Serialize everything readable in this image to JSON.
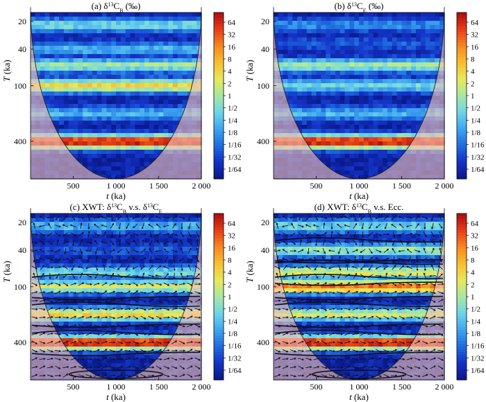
{
  "figure": {
    "panels": [
      {
        "id": "a",
        "title": "(a) δ¹³C_B (‰)",
        "title_parts": [
          "(a) δ",
          "13",
          "C",
          "B",
          " (‰)"
        ],
        "type": "wavelet_power",
        "arrows": false,
        "contours": false
      },
      {
        "id": "b",
        "title": "(b) δ¹³C_E (‰)",
        "title_parts": [
          "(b) δ",
          "13",
          "C",
          "E",
          " (‰)"
        ],
        "type": "wavelet_power",
        "arrows": false,
        "contours": false
      },
      {
        "id": "c",
        "title": "(c) XWT: δ¹³C_B v.s. δ¹³C_E",
        "title_parts": [
          "(c) XWT: δ",
          "13",
          "C",
          "B",
          " v.s. δ",
          "13",
          "C",
          "E"
        ],
        "type": "cross_wavelet",
        "arrows": true,
        "contours": true
      },
      {
        "id": "d",
        "title": "(d) XWT: δ¹³C_B v.s. Ecc.",
        "title_parts": [
          "(d) XWT: δ",
          "13",
          "C",
          "B",
          " v.s. Ecc.",
          "",
          "",
          ""
        ],
        "type": "cross_wavelet",
        "arrows": true,
        "contours": true
      }
    ]
  },
  "chart_data": [
    {
      "type": "heatmap",
      "panel": "a",
      "title": "(a) δ13CB (‰)",
      "xlabel_var": "t",
      "xlabel_unit": " (ka)",
      "ylabel_var": "T",
      "ylabel_unit": " (ka)",
      "x_ticks": [
        500,
        1000,
        1500,
        2000
      ],
      "x_tick_labels": [
        "500",
        "1 000",
        "1 500",
        "2 000"
      ],
      "xlim": [
        0,
        2000
      ],
      "y_ticks": [
        20,
        40,
        100,
        400
      ],
      "y_tick_labels": [
        "20",
        "40",
        "100",
        "400"
      ],
      "ylim_log2": [
        4,
        10
      ],
      "y_scale": "log2",
      "colorbar_labels": [
        "64",
        "32",
        "16",
        "8",
        "4",
        "2",
        "1",
        "1/2",
        "1/4",
        "1/8",
        "1/16",
        "1/32",
        "1/64"
      ],
      "bands": [
        {
          "period": 22,
          "power": 0.5
        },
        {
          "period": 40,
          "power": 0.25
        },
        {
          "period": 60,
          "power": 1
        },
        {
          "period": 100,
          "power": 4
        },
        {
          "period": 200,
          "power": 0.25
        },
        {
          "period": 405,
          "power": 64
        }
      ]
    },
    {
      "type": "heatmap",
      "panel": "b",
      "title": "(b) δ13CE (‰)",
      "xlabel_var": "t",
      "xlabel_unit": " (ka)",
      "ylabel_var": "T",
      "ylabel_unit": " (ka)",
      "x_ticks": [
        500,
        1000,
        1500,
        2000
      ],
      "x_tick_labels": [
        "500",
        "1 000",
        "1 500",
        "2 000"
      ],
      "xlim": [
        0,
        2000
      ],
      "y_ticks": [
        20,
        40,
        100,
        400
      ],
      "y_tick_labels": [
        "20",
        "40",
        "100",
        "400"
      ],
      "ylim_log2": [
        4,
        10
      ],
      "y_scale": "log2",
      "colorbar_labels": [
        "64",
        "32",
        "16",
        "8",
        "4",
        "2",
        "1",
        "1/2",
        "1/4",
        "1/8",
        "1/16",
        "1/32",
        "1/64"
      ],
      "bands": [
        {
          "period": 22,
          "power": 0.125
        },
        {
          "period": 35,
          "power": 0.0625
        },
        {
          "period": 60,
          "power": 1
        },
        {
          "period": 100,
          "power": 0.5
        },
        {
          "period": 200,
          "power": 0.25
        },
        {
          "period": 405,
          "power": 64
        }
      ]
    },
    {
      "type": "heatmap",
      "panel": "c",
      "title": "(c) XWT: δ13CB v.s. δ13CE",
      "xlabel_var": "t",
      "xlabel_unit": " (ka)",
      "ylabel_var": "T",
      "ylabel_unit": " (ka)",
      "x_ticks": [
        500,
        1000,
        1500,
        2000
      ],
      "x_tick_labels": [
        "500",
        "1 000",
        "1 500",
        "2 000"
      ],
      "xlim": [
        0,
        2000
      ],
      "y_ticks": [
        20,
        40,
        100,
        400
      ],
      "y_tick_labels": [
        "20",
        "40",
        "100",
        "400"
      ],
      "ylim_log2": [
        4,
        10
      ],
      "y_scale": "log2",
      "colorbar_labels": [
        "64",
        "32",
        "16",
        "8",
        "4",
        "2",
        "1",
        "1/2",
        "1/4",
        "1/8",
        "1/16",
        "1/32",
        "1/64"
      ],
      "bands": [
        {
          "period": 22,
          "power": 0.25
        },
        {
          "period": 40,
          "power": 0.0625
        },
        {
          "period": 70,
          "power": 0.5
        },
        {
          "period": 100,
          "power": 2
        },
        {
          "period": 200,
          "power": 4
        },
        {
          "period": 405,
          "power": 64
        }
      ]
    },
    {
      "type": "heatmap",
      "panel": "d",
      "title": "(d) XWT: δ13CB v.s. Ecc.",
      "xlabel_var": "t",
      "xlabel_unit": " (ka)",
      "ylabel_var": "T",
      "ylabel_unit": " (ka)",
      "x_ticks": [
        500,
        1000,
        1500,
        2000
      ],
      "x_tick_labels": [
        "500",
        "1 000",
        "1 500",
        "2 000"
      ],
      "xlim": [
        0,
        2000
      ],
      "y_ticks": [
        20,
        40,
        100,
        400
      ],
      "y_tick_labels": [
        "20",
        "40",
        "100",
        "400"
      ],
      "ylim_log2": [
        4,
        10
      ],
      "y_scale": "log2",
      "colorbar_labels": [
        "64",
        "32",
        "16",
        "8",
        "4",
        "2",
        "1",
        "1/2",
        "1/4",
        "1/8",
        "1/16",
        "1/32",
        "1/64"
      ],
      "bands": [
        {
          "period": 22,
          "power": 0.5
        },
        {
          "period": 40,
          "power": 1
        },
        {
          "period": 70,
          "power": 2
        },
        {
          "period": 100,
          "power": 16
        },
        {
          "period": 200,
          "power": 2
        },
        {
          "period": 405,
          "power": 64
        }
      ]
    }
  ],
  "colormap": [
    "#0a1a8c",
    "#1434c8",
    "#1f6fe0",
    "#3fa7f0",
    "#6fd6e8",
    "#a8e8a0",
    "#e8e85a",
    "#f8c030",
    "#f88a20",
    "#e84018",
    "#b01010"
  ],
  "mask_color": "#f2c2b8"
}
